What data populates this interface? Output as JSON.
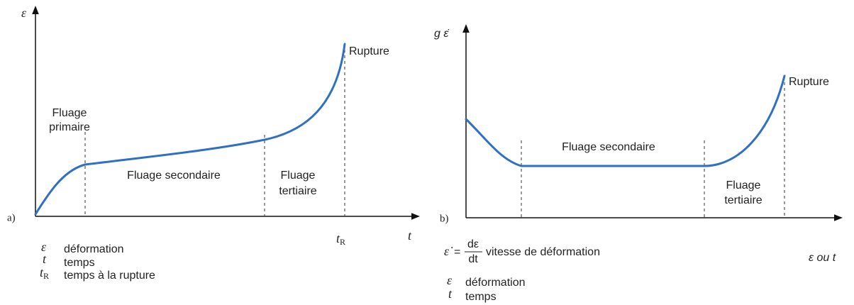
{
  "panel_a": {
    "label": "a)",
    "y_axis": "ε",
    "x_axis": "t",
    "x_marker": {
      "base": "t",
      "sub": "R"
    },
    "regions": {
      "primary": [
        "Fluage",
        "primaire"
      ],
      "secondary": "Fluage secondaire",
      "tertiary": [
        "Fluage",
        "tertiaire"
      ]
    },
    "rupture": "Rupture",
    "legend": [
      {
        "symbol": "ε",
        "text": "déformation"
      },
      {
        "symbol": "t",
        "text": "temps"
      },
      {
        "symbol": {
          "base": "t",
          "sub": "R"
        },
        "text": "temps à la rupture"
      }
    ]
  },
  "panel_b": {
    "label": "b)",
    "y_axis": "g ε̇",
    "x_axis": "ε ou t",
    "regions": {
      "secondary": "Fluage secondaire",
      "tertiary": [
        "Fluage",
        "tertiaire"
      ]
    },
    "rupture": "Rupture",
    "rate_definition": {
      "symbol": "ε̇",
      "equals": "=",
      "numerator": "dε",
      "denominator": "dt",
      "text": "vitesse de déformation"
    },
    "legend": [
      {
        "symbol": "ε",
        "text": "déformation"
      },
      {
        "symbol": "t",
        "text": "temps"
      }
    ]
  }
}
